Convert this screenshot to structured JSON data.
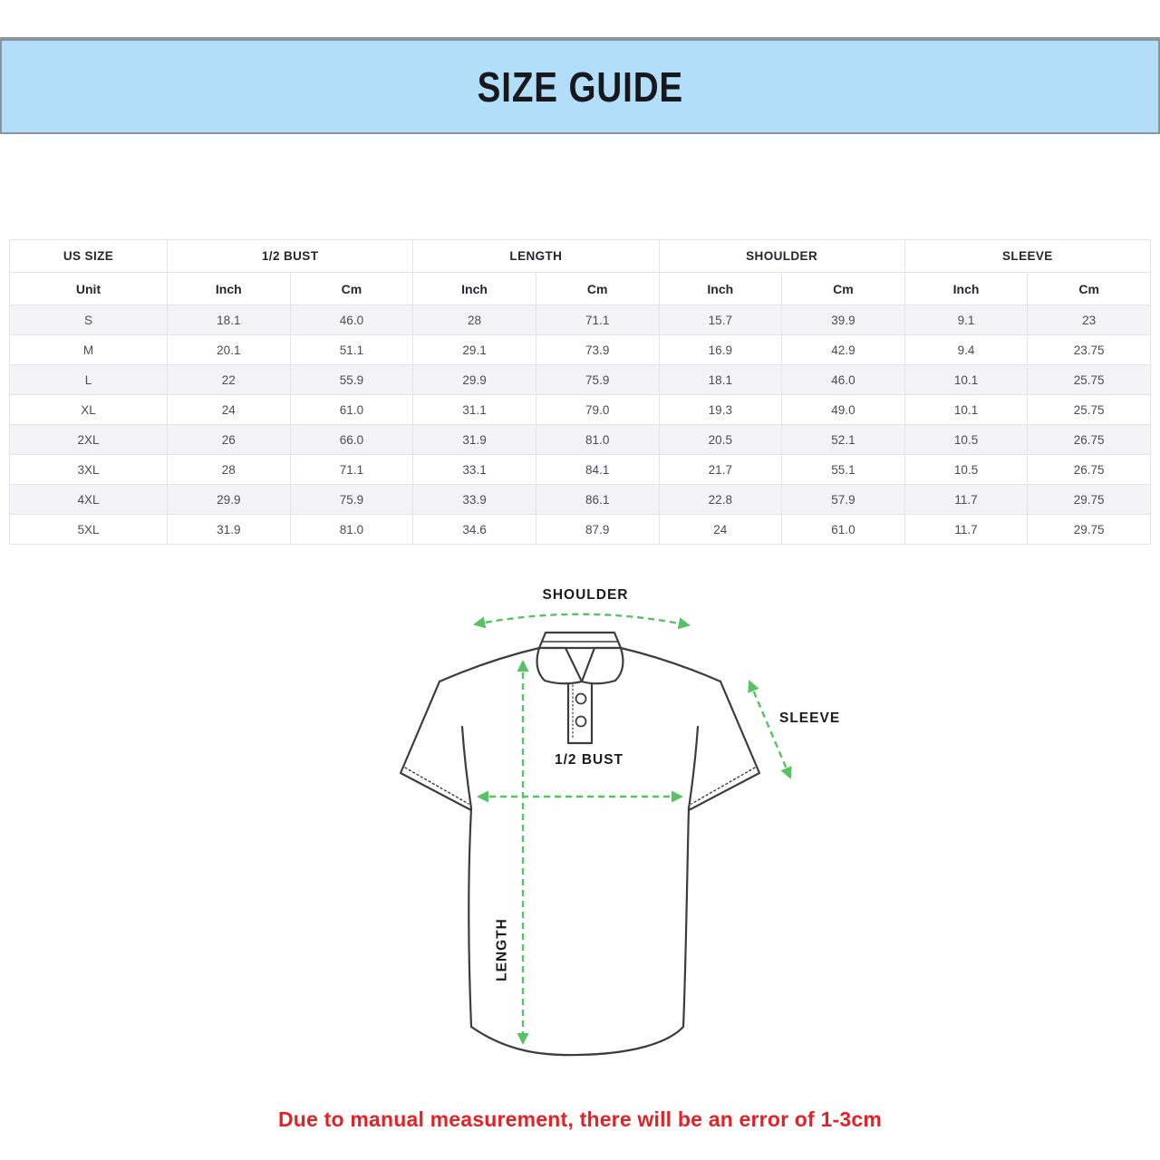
{
  "banner": {
    "title": "SIZE GUIDE"
  },
  "table": {
    "group_headers": [
      {
        "label": "US SIZE"
      },
      {
        "label": "1/2 BUST"
      },
      {
        "label": "LENGTH"
      },
      {
        "label": "SHOULDER"
      },
      {
        "label": "SLEEVE"
      }
    ],
    "unit_row": [
      "Unit",
      "Inch",
      "Cm",
      "Inch",
      "Cm",
      "Inch",
      "Cm",
      "Inch",
      "Cm"
    ],
    "rows": [
      [
        "S",
        "18.1",
        "46.0",
        "28",
        "71.1",
        "15.7",
        "39.9",
        "9.1",
        "23"
      ],
      [
        "M",
        "20.1",
        "51.1",
        "29.1",
        "73.9",
        "16.9",
        "42.9",
        "9.4",
        "23.75"
      ],
      [
        "L",
        "22",
        "55.9",
        "29.9",
        "75.9",
        "18.1",
        "46.0",
        "10.1",
        "25.75"
      ],
      [
        "XL",
        "24",
        "61.0",
        "31.1",
        "79.0",
        "19.3",
        "49.0",
        "10.1",
        "25.75"
      ],
      [
        "2XL",
        "26",
        "66.0",
        "31.9",
        "81.0",
        "20.5",
        "52.1",
        "10.5",
        "26.75"
      ],
      [
        "3XL",
        "28",
        "71.1",
        "33.1",
        "84.1",
        "21.7",
        "55.1",
        "10.5",
        "26.75"
      ],
      [
        "4XL",
        "29.9",
        "75.9",
        "33.9",
        "86.1",
        "22.8",
        "57.9",
        "11.7",
        "29.75"
      ],
      [
        "5XL",
        "31.9",
        "81.0",
        "34.6",
        "87.9",
        "24",
        "61.0",
        "11.7",
        "29.75"
      ]
    ]
  },
  "diagram": {
    "labels": {
      "shoulder": "SHOULDER",
      "sleeve": "SLEEVE",
      "half_bust": "1/2 BUST",
      "length": "LENGTH"
    },
    "arrow_color": "#57c163",
    "outline_color": "#3d3d3d"
  },
  "note": {
    "text": "Due to manual measurement, there will be an error of 1-3cm",
    "color": "#e32227"
  },
  "colors": {
    "banner_bg": "#b3defa",
    "banner_border": "#8b939b"
  }
}
